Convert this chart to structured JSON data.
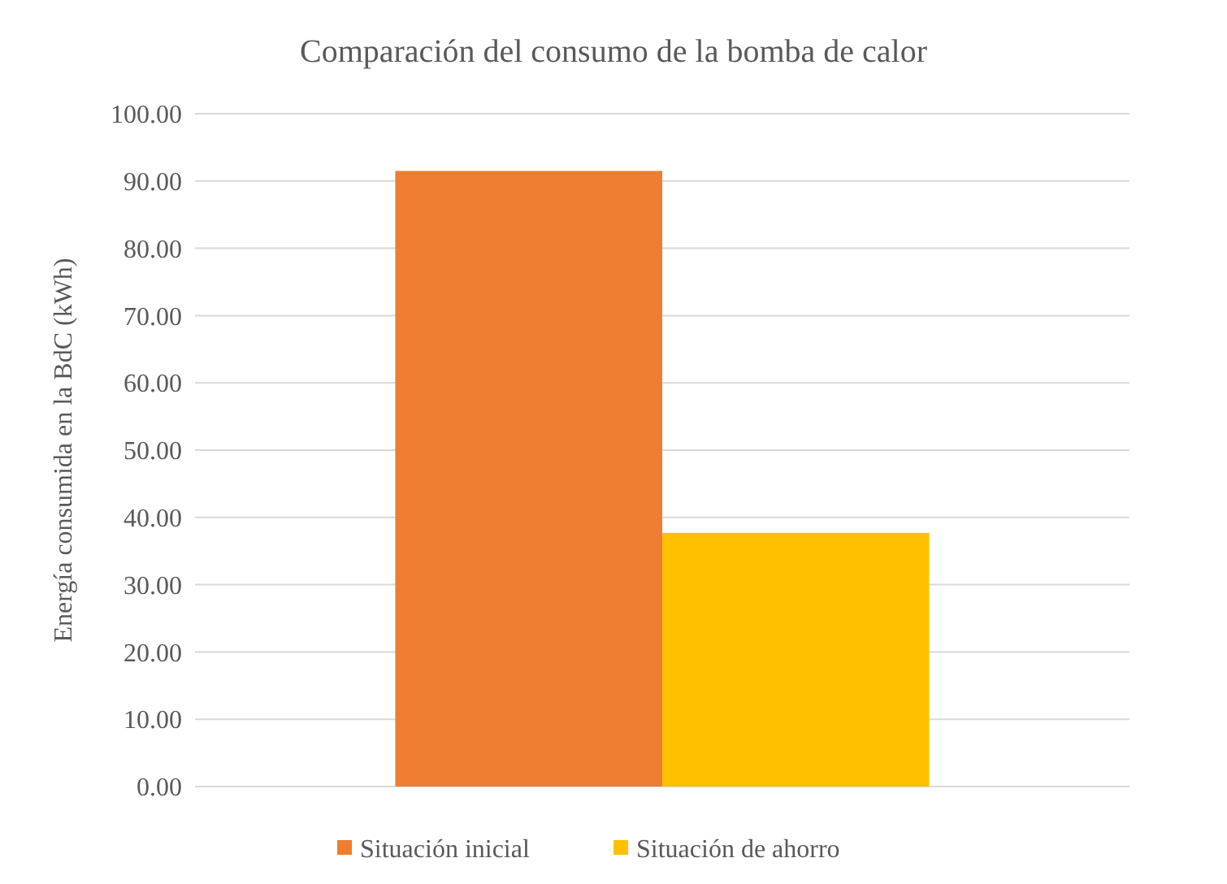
{
  "chart_data": {
    "type": "bar",
    "title": "Comparación del consumo de la bomba de calor",
    "ylabel": "Energía consumida en la BdC (kWh)",
    "categories": [
      null
    ],
    "series": [
      {
        "name": "Situación inicial",
        "color": "#ed7d31",
        "values": [
          91.5
        ]
      },
      {
        "name": "Situación de ahorro",
        "color": "#ffc000",
        "values": [
          37.7
        ]
      }
    ],
    "ylim": [
      0,
      100
    ],
    "yticks": [
      {
        "value": 0,
        "label": "0.00"
      },
      {
        "value": 10,
        "label": "10.00"
      },
      {
        "value": 20,
        "label": "20.00"
      },
      {
        "value": 30,
        "label": "30.00"
      },
      {
        "value": 40,
        "label": "40.00"
      },
      {
        "value": 50,
        "label": "50.00"
      },
      {
        "value": 60,
        "label": "60.00"
      },
      {
        "value": 70,
        "label": "70.00"
      },
      {
        "value": 80,
        "label": "80.00"
      },
      {
        "value": 90,
        "label": "90.00"
      },
      {
        "value": 100,
        "label": "100.00"
      }
    ],
    "grid": true,
    "legend": "bottom"
  }
}
